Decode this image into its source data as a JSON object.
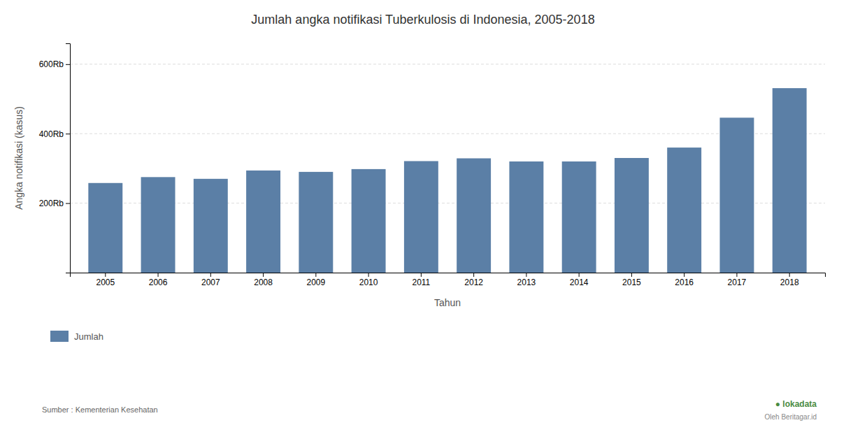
{
  "chart_data": {
    "type": "bar",
    "title": "Jumlah angka notifikasi Tuberkulosis di Indonesia, 2005-2018",
    "categories": [
      "2005",
      "2006",
      "2007",
      "2008",
      "2009",
      "2010",
      "2011",
      "2012",
      "2013",
      "2014",
      "2015",
      "2016",
      "2017",
      "2018"
    ],
    "series": [
      {
        "name": "Jumlah",
        "color": "#5b7fa6",
        "values": [
          258000,
          275000,
          270000,
          294000,
          290000,
          298000,
          321000,
          329000,
          320000,
          320000,
          330000,
          360000,
          446000,
          531000
        ]
      }
    ],
    "x_label": "Tahun",
    "y_label": "Angka notifikasi (kasus)",
    "ylim": [
      0,
      660000
    ],
    "yticks": [
      {
        "value": 200000,
        "label": "200Rb"
      },
      {
        "value": 400000,
        "label": "400Rb"
      },
      {
        "value": 600000,
        "label": "600Rb"
      }
    ],
    "grid": true,
    "legend": "bottom",
    "annotations": [
      "Sumber : Kementerian Kesehatan",
      "● lokadata",
      "Oleh Beritagar.id"
    ]
  }
}
